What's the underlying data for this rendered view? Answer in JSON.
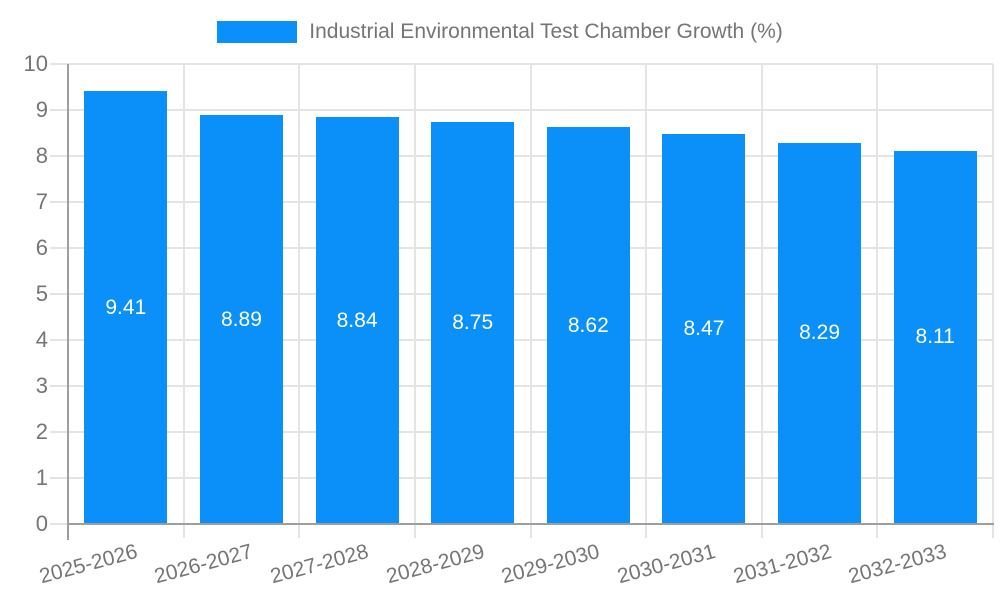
{
  "legend": {
    "label": "Industrial Environmental Test Chamber Growth (%)"
  },
  "colors": {
    "bar": "#0a90f8",
    "axis": "#9e9e9e",
    "grid": "#e4e4e4",
    "tick_text": "#757575",
    "value_text": "#ffffff",
    "background": "#ffffff"
  },
  "chart_data": {
    "type": "bar",
    "title": "Industrial Environmental Test Chamber Growth (%)",
    "categories": [
      "2025-2026",
      "2026-2027",
      "2027-2028",
      "2028-2029",
      "2029-2030",
      "2030-2031",
      "2031-2032",
      "2032-2033"
    ],
    "values": [
      9.41,
      8.89,
      8.84,
      8.75,
      8.62,
      8.47,
      8.29,
      8.11
    ],
    "bar_labels": [
      "9.41",
      "8.89",
      "8.84",
      "8.75",
      "8.62",
      "8.47",
      "8.29",
      "8.11"
    ],
    "xlabel": "",
    "ylabel": "",
    "ylim": [
      0,
      10
    ],
    "yticks": [
      0,
      1,
      2,
      3,
      4,
      5,
      6,
      7,
      8,
      9,
      10
    ],
    "grid": true,
    "legend_position": "top",
    "x_tick_rotation_deg": -15
  }
}
